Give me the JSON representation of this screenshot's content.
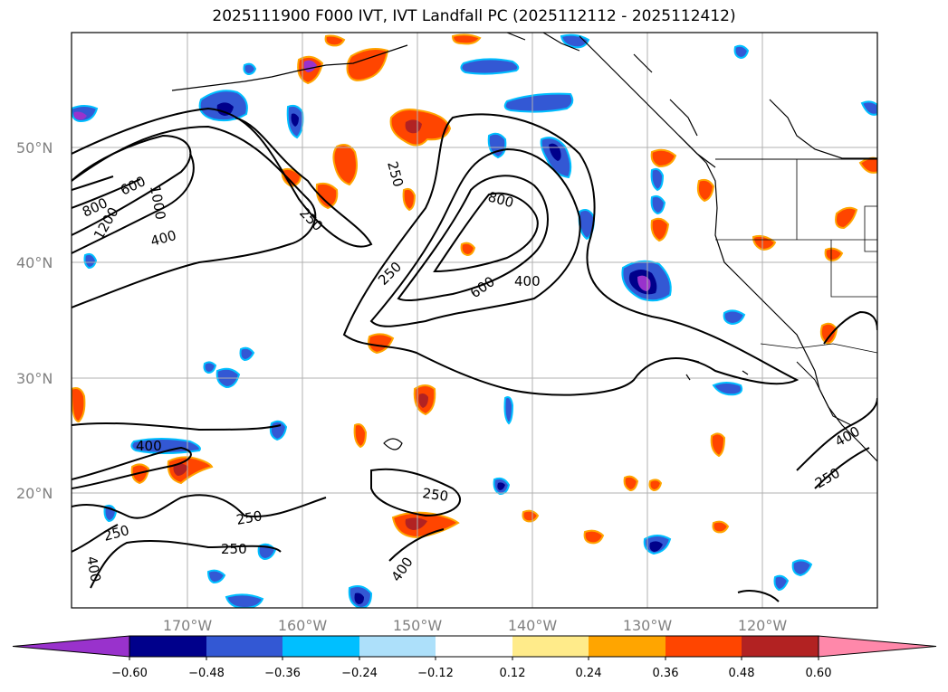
{
  "title": "2025111900 F000 IVT, IVT Landfall PC (2025112112 - 2025112412)",
  "map": {
    "lon_range": [
      -180,
      -110
    ],
    "lat_range": [
      10,
      60
    ],
    "lat_ticks": [
      "50°N",
      "40°N",
      "30°N",
      "20°N"
    ],
    "lon_ticks": [
      "170°W",
      "160°W",
      "150°W",
      "140°W",
      "130°W",
      "120°W"
    ],
    "grid": true,
    "contour_labels": [
      "250",
      "250",
      "250",
      "250",
      "250",
      "250",
      "250",
      "250",
      "400",
      "400",
      "400",
      "400",
      "400",
      "400",
      "600",
      "600",
      "800",
      "800",
      "1000",
      "1200"
    ]
  },
  "colorbar": {
    "ticks": [
      "−0.60",
      "−0.48",
      "−0.36",
      "−0.24",
      "−0.12",
      "0.12",
      "0.24",
      "0.36",
      "0.48",
      "0.60"
    ],
    "colors": [
      "#9932CC",
      "#00008B",
      "#3358D4",
      "#00BFFF",
      "#ADE0FA",
      "#FFFFFF",
      "#FFEB8A",
      "#FFA500",
      "#FF4500",
      "#B22222",
      "#FF88AA"
    ]
  }
}
